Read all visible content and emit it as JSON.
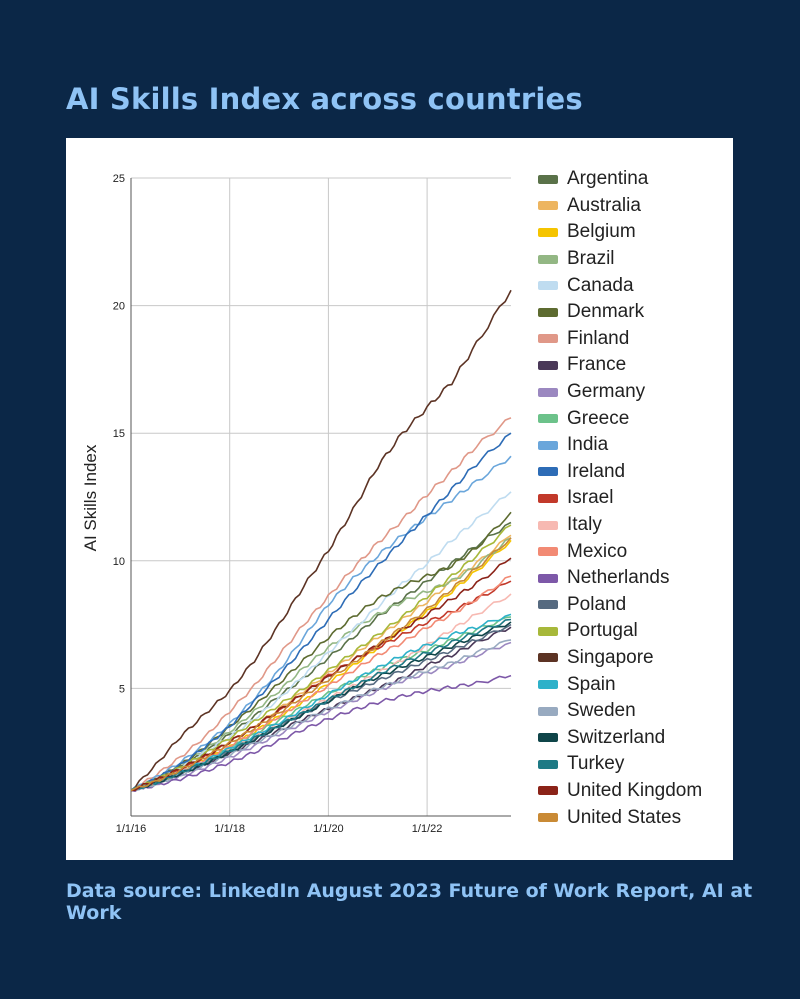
{
  "title": "AI Skills Index across countries",
  "source": "Data source: LinkedIn August 2023 Future of Work Report, AI at Work",
  "chart_data": {
    "type": "line",
    "title": "AI Skills Index across countries",
    "ylabel": "AI Skills Index",
    "xlabel": "",
    "x": [
      2016.0,
      2016.5,
      2017.0,
      2017.5,
      2018.0,
      2018.5,
      2019.0,
      2019.5,
      2020.0,
      2020.5,
      2021.0,
      2021.5,
      2022.0,
      2022.5,
      2023.0,
      2023.7
    ],
    "xticks": [
      2016,
      2018,
      2020,
      2022
    ],
    "xtick_labels": [
      "1/1/16",
      "1/1/18",
      "1/1/20",
      "1/1/22"
    ],
    "xlim": [
      2016.0,
      2023.7
    ],
    "ylim": [
      0,
      25
    ],
    "yticks": [
      5,
      10,
      15,
      20,
      25
    ],
    "grid": true,
    "legend_position": "right",
    "series": [
      {
        "name": "Argentina",
        "color": "#5a7249",
        "values": [
          1,
          1.4,
          1.9,
          2.5,
          3.2,
          3.9,
          4.7,
          5.4,
          6.2,
          7.0,
          7.8,
          8.5,
          9.2,
          9.9,
          10.6,
          11.5
        ]
      },
      {
        "name": "Australia",
        "color": "#edb560",
        "values": [
          1,
          1.35,
          1.8,
          2.3,
          2.9,
          3.5,
          4.2,
          4.9,
          5.6,
          6.3,
          7.0,
          7.7,
          8.4,
          9.2,
          9.9,
          11.0
        ]
      },
      {
        "name": "Belgium",
        "color": "#f5c400",
        "values": [
          1,
          1.3,
          1.7,
          2.2,
          2.7,
          3.3,
          3.9,
          4.5,
          5.2,
          5.9,
          6.6,
          7.3,
          8.0,
          8.8,
          9.6,
          10.8
        ]
      },
      {
        "name": "Brazil",
        "color": "#93b784",
        "values": [
          1,
          1.45,
          2.0,
          2.6,
          3.3,
          4.1,
          4.9,
          5.8,
          6.6,
          7.3,
          7.9,
          8.4,
          8.8,
          9.2,
          9.8,
          10.9
        ]
      },
      {
        "name": "Canada",
        "color": "#bfdcf0",
        "values": [
          1,
          1.4,
          1.9,
          2.5,
          3.1,
          3.8,
          4.6,
          5.5,
          6.4,
          7.3,
          8.2,
          9.1,
          9.9,
          10.8,
          11.6,
          12.7
        ]
      },
      {
        "name": "Denmark",
        "color": "#5d6b30",
        "values": [
          1,
          1.45,
          2.0,
          2.7,
          3.5,
          4.3,
          5.2,
          6.1,
          7.0,
          7.8,
          8.5,
          9.0,
          9.4,
          9.8,
          10.5,
          11.9
        ]
      },
      {
        "name": "Finland",
        "color": "#e09888",
        "values": [
          1,
          1.6,
          2.3,
          3.1,
          4.1,
          5.1,
          6.3,
          7.5,
          8.6,
          9.7,
          10.7,
          11.6,
          12.6,
          13.5,
          14.5,
          15.6
        ]
      },
      {
        "name": "France",
        "color": "#4a3858",
        "values": [
          1,
          1.3,
          1.65,
          2.0,
          2.45,
          2.9,
          3.35,
          3.8,
          4.2,
          4.6,
          5.0,
          5.4,
          5.9,
          6.3,
          6.8,
          7.4
        ]
      },
      {
        "name": "Germany",
        "color": "#9b88c0",
        "values": [
          1,
          1.25,
          1.55,
          1.9,
          2.3,
          2.75,
          3.2,
          3.65,
          4.1,
          4.5,
          4.9,
          5.3,
          5.6,
          5.9,
          6.3,
          6.8
        ]
      },
      {
        "name": "Greece",
        "color": "#6cc28a",
        "values": [
          1,
          1.3,
          1.7,
          2.15,
          2.65,
          3.2,
          3.75,
          4.3,
          4.8,
          5.3,
          5.75,
          6.15,
          6.5,
          6.9,
          7.3,
          7.8
        ]
      },
      {
        "name": "India",
        "color": "#6aa6db",
        "values": [
          1,
          1.5,
          2.1,
          2.8,
          3.6,
          4.6,
          5.7,
          7.0,
          8.3,
          9.3,
          10.2,
          11.0,
          11.7,
          12.4,
          13.1,
          14.1
        ]
      },
      {
        "name": "Ireland",
        "color": "#2d6cb6",
        "values": [
          1,
          1.45,
          2.0,
          2.7,
          3.5,
          4.5,
          5.5,
          6.6,
          7.7,
          8.8,
          9.8,
          10.8,
          11.8,
          12.8,
          13.8,
          15.0
        ]
      },
      {
        "name": "Israel",
        "color": "#c2392a",
        "values": [
          1,
          1.35,
          1.8,
          2.3,
          2.9,
          3.5,
          4.1,
          4.8,
          5.5,
          6.1,
          6.6,
          7.1,
          7.6,
          8.0,
          8.5,
          9.2
        ]
      },
      {
        "name": "Italy",
        "color": "#f7b9b2",
        "values": [
          1,
          1.3,
          1.7,
          2.15,
          2.6,
          3.1,
          3.6,
          4.1,
          4.6,
          5.1,
          5.6,
          6.1,
          6.7,
          7.3,
          7.9,
          8.7
        ]
      },
      {
        "name": "Mexico",
        "color": "#f28a74",
        "values": [
          1,
          1.3,
          1.7,
          2.2,
          2.75,
          3.3,
          3.9,
          4.5,
          5.1,
          5.7,
          6.3,
          6.8,
          7.4,
          7.9,
          8.5,
          9.4
        ]
      },
      {
        "name": "Netherlands",
        "color": "#7d58a8",
        "values": [
          1,
          1.2,
          1.45,
          1.75,
          2.1,
          2.5,
          2.95,
          3.4,
          3.8,
          4.15,
          4.45,
          4.7,
          4.9,
          5.05,
          5.2,
          5.5
        ]
      },
      {
        "name": "Poland",
        "color": "#566a80",
        "values": [
          1,
          1.3,
          1.65,
          2.05,
          2.5,
          3.0,
          3.5,
          4.0,
          4.5,
          4.9,
          5.3,
          5.7,
          6.1,
          6.5,
          6.9,
          7.5
        ]
      },
      {
        "name": "Portugal",
        "color": "#a7b83a",
        "values": [
          1,
          1.4,
          1.9,
          2.45,
          3.05,
          3.7,
          4.35,
          5.0,
          5.7,
          6.4,
          7.1,
          7.8,
          8.6,
          9.4,
          10.2,
          11.4
        ]
      },
      {
        "name": "Singapore",
        "color": "#5c3324",
        "values": [
          1,
          2.0,
          3.1,
          4.0,
          4.9,
          6.1,
          7.5,
          9.0,
          10.4,
          12.0,
          13.7,
          15.0,
          16.0,
          17.0,
          18.5,
          20.6
        ]
      },
      {
        "name": "Spain",
        "color": "#2eb1c9",
        "values": [
          1,
          1.3,
          1.7,
          2.15,
          2.65,
          3.15,
          3.65,
          4.2,
          4.75,
          5.3,
          5.8,
          6.3,
          6.7,
          7.1,
          7.4,
          7.9
        ]
      },
      {
        "name": "Sweden",
        "color": "#98aac0",
        "values": [
          1,
          1.25,
          1.6,
          2.0,
          2.4,
          2.85,
          3.3,
          3.75,
          4.2,
          4.6,
          5.0,
          5.35,
          5.7,
          6.0,
          6.4,
          6.9
        ]
      },
      {
        "name": "Switzerland",
        "color": "#0f4549",
        "values": [
          1,
          1.3,
          1.65,
          2.05,
          2.5,
          3.0,
          3.5,
          4.0,
          4.5,
          5.0,
          5.45,
          5.85,
          6.25,
          6.65,
          7.05,
          7.6
        ]
      },
      {
        "name": "Turkey",
        "color": "#1e7a85",
        "values": [
          1,
          1.3,
          1.7,
          2.1,
          2.55,
          3.05,
          3.55,
          4.05,
          4.55,
          5.05,
          5.55,
          6.0,
          6.4,
          6.8,
          7.2,
          7.7
        ]
      },
      {
        "name": "United Kingdom",
        "color": "#8b2318",
        "values": [
          1,
          1.4,
          1.85,
          2.35,
          2.9,
          3.5,
          4.15,
          4.8,
          5.45,
          6.1,
          6.7,
          7.3,
          7.9,
          8.5,
          9.1,
          10.1
        ]
      },
      {
        "name": "United States",
        "color": "#c98a35",
        "values": [
          1,
          1.35,
          1.8,
          2.3,
          2.85,
          3.45,
          4.05,
          4.7,
          5.35,
          6.0,
          6.7,
          7.4,
          8.1,
          8.9,
          9.7,
          10.9
        ]
      }
    ]
  }
}
